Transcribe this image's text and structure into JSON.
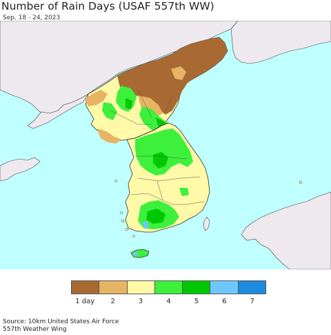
{
  "header": {
    "title": "Number of Rain Days (USAF 557th WW)",
    "subtitle": "Sep. 18 - 24, 2023"
  },
  "legend": {
    "items": [
      {
        "label": "1 day",
        "color": "#a86a32"
      },
      {
        "label": "2",
        "color": "#e6b464"
      },
      {
        "label": "3",
        "color": "#fff9a8"
      },
      {
        "label": "4",
        "color": "#3cf03c"
      },
      {
        "label": "5",
        "color": "#00c800"
      },
      {
        "label": "6",
        "color": "#6ec8ff"
      },
      {
        "label": "7",
        "color": "#1e8cdc"
      }
    ]
  },
  "source": {
    "line1": "Source: 10km United States Air Force",
    "line2": "557th Weather Wing"
  },
  "colors": {
    "sea": "#bfffff",
    "land_nodata": "#ede9ee",
    "border": "#333333"
  }
}
